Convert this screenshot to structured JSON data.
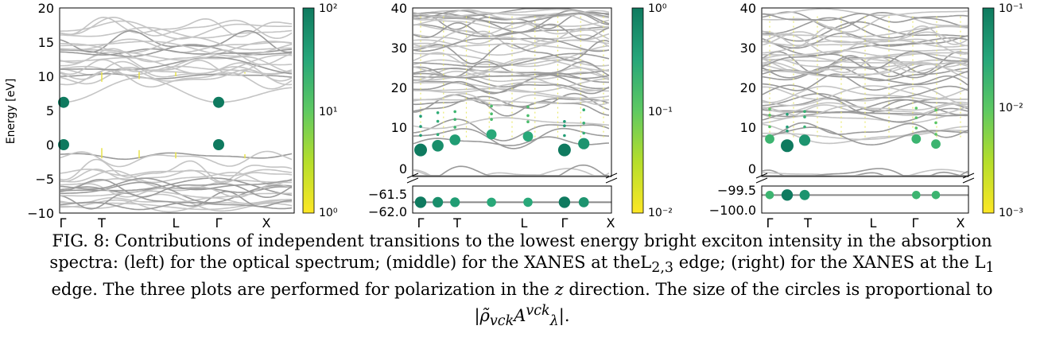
{
  "figure_label": "FIG. 8:",
  "caption": {
    "line1": "Contributions of independent transitions to the lowest energy bright exciton intensity in the absorption",
    "line2": "spectra: (left) for the optical spectrum; (middle) for the XANES at theL",
    "line2_sub": "2,3",
    "line2_b": " edge; (right) for the XANES at the L",
    "line2_sub2": "1",
    "line3_a": "edge. The three plots are performed for polarization in the ",
    "line3_z": "z",
    "line3_b": " direction. The size of the circles is proportional to",
    "line4": "|ρ̃",
    "line4_sub": "vck",
    "line4_mid": "A",
    "line4_sup": "vck",
    "line4_sub2": "λ",
    "line4_end": "|."
  },
  "colors": {
    "band": "#9a9a9a",
    "band_light": "#c4c4c4",
    "cmap_low": "#fde725",
    "cmap_mid": "#5ec962",
    "cmap_high": "#0f7a5f"
  },
  "chart_data": [
    {
      "type": "scatter",
      "panel": "left",
      "ylabel": "Energy [eV]",
      "ylim": [
        -10,
        20
      ],
      "yticks": [
        "20",
        "15",
        "10",
        "5",
        "0",
        "−5",
        "−10"
      ],
      "xticks": [
        "Γ",
        "T",
        "L",
        "Γ",
        "X"
      ],
      "colorbar_ticks": [
        "10²",
        "10¹",
        "10⁰"
      ],
      "colorbar_scale": "log",
      "points": [
        {
          "k": "Γ",
          "e": 6.2,
          "w": 100
        },
        {
          "k": "Γ",
          "e": 0.0,
          "w": 100
        },
        {
          "k": "Γ2",
          "e": 6.2,
          "w": 100
        },
        {
          "k": "Γ2",
          "e": 0.0,
          "w": 100
        }
      ]
    },
    {
      "type": "scatter",
      "panel": "middle",
      "ylim_upper": [
        0,
        40
      ],
      "ylim_lower": [
        -62.0,
        -61.25
      ],
      "yticks": [
        "40",
        "30",
        "20",
        "10",
        "0",
        "−61.5",
        "−62.0"
      ],
      "xticks": [
        "Γ",
        "T",
        "L",
        "Γ",
        "X"
      ],
      "colorbar_ticks": [
        "10⁰",
        "10⁻¹",
        "10⁻²"
      ],
      "colorbar_scale": "log",
      "points": [
        {
          "k": 0.0,
          "e": 6.3,
          "w": 1.0
        },
        {
          "k": 0.08,
          "e": 7.3,
          "w": 0.6
        },
        {
          "k": 0.16,
          "e": 8.7,
          "w": 0.4
        },
        {
          "k": 0.33,
          "e": 10.0,
          "w": 0.3
        },
        {
          "k": 0.5,
          "e": 9.5,
          "w": 0.3
        },
        {
          "k": 0.67,
          "e": 6.3,
          "w": 1.0
        },
        {
          "k": 0.76,
          "e": 7.8,
          "w": 0.5
        }
      ]
    },
    {
      "type": "scatter",
      "panel": "right",
      "ylim_upper": [
        0,
        40
      ],
      "ylim_lower": [
        -100.0,
        -99.25
      ],
      "yticks": [
        "40",
        "30",
        "20",
        "10",
        "0",
        "−99.5",
        "−100.0"
      ],
      "xticks": [
        "Γ",
        "T",
        "L",
        "Γ",
        "X"
      ],
      "colorbar_ticks": [
        "10⁻¹",
        "10⁻²",
        "10⁻³"
      ],
      "colorbar_scale": "log",
      "points": [
        {
          "k": 0.0,
          "e": 8.9,
          "w": 0.02
        },
        {
          "k": 0.08,
          "e": 7.3,
          "w": 0.1
        },
        {
          "k": 0.16,
          "e": 8.6,
          "w": 0.05
        },
        {
          "k": 0.67,
          "e": 8.9,
          "w": 0.02
        },
        {
          "k": 0.76,
          "e": 7.7,
          "w": 0.02
        }
      ]
    }
  ]
}
